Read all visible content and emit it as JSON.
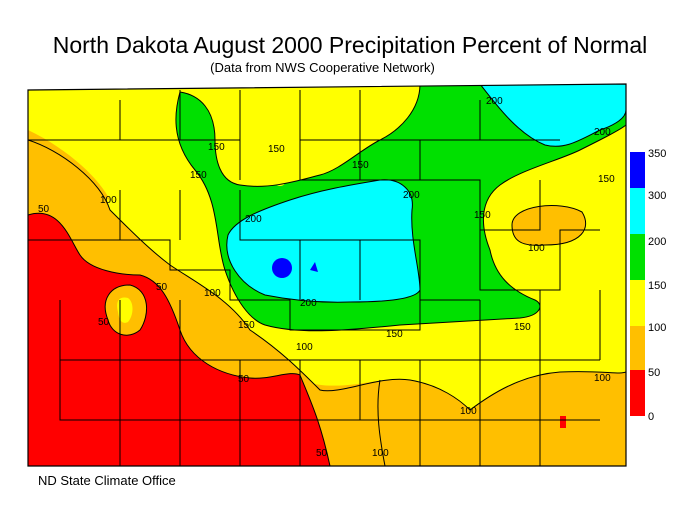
{
  "title": "North Dakota August 2000 Precipitation Percent of Normal",
  "subtitle": "(Data from NWS Cooperative Network)",
  "credit": "ND State Climate Office",
  "legend": [
    {
      "label": "350",
      "color": "#0000ff"
    },
    {
      "label": "300",
      "color": "#00ffff"
    },
    {
      "label": "200",
      "color": "#00e000"
    },
    {
      "label": "150",
      "color": "#ffff00"
    },
    {
      "label": "100",
      "color": "#ffbf00"
    },
    {
      "label": "50",
      "color": "#ff0000"
    },
    {
      "label": "0",
      "color": ""
    }
  ],
  "contour_labels": {
    "c1": "50",
    "c2": "100",
    "c3": "150",
    "c4": "150",
    "c5": "150",
    "c6": "200",
    "c7": "150",
    "c8": "200",
    "c9": "200",
    "c10": "150",
    "c11": "150",
    "c12": "200",
    "c13": "100",
    "c14": "50",
    "c15": "100",
    "c16": "50",
    "c17": "150",
    "c18": "200",
    "c19": "100",
    "c20": "150",
    "c21": "150",
    "c22": "50",
    "c23": "100",
    "c24": "100",
    "c25": "50",
    "c26": "100"
  }
}
